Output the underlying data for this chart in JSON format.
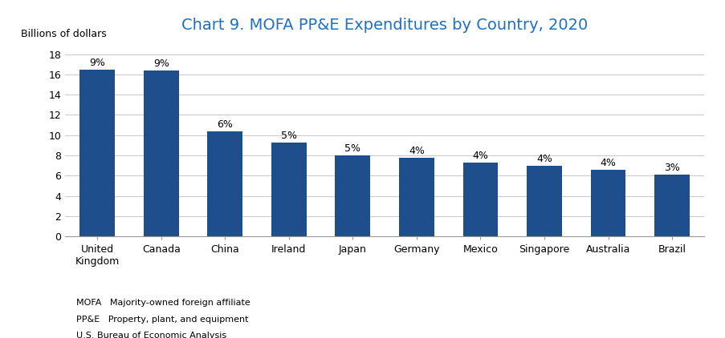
{
  "title": "Chart 9. MOFA PP&E Expenditures by Country, 2020",
  "ylabel": "Billions of dollars",
  "categories": [
    "United\nKingdom",
    "Canada",
    "China",
    "Ireland",
    "Japan",
    "Germany",
    "Mexico",
    "Singapore",
    "Australia",
    "Brazil"
  ],
  "values": [
    16.5,
    16.4,
    10.35,
    9.3,
    8.0,
    7.8,
    7.3,
    7.0,
    6.6,
    6.1
  ],
  "percentages": [
    "9%",
    "9%",
    "6%",
    "5%",
    "5%",
    "4%",
    "4%",
    "4%",
    "4%",
    "3%"
  ],
  "bar_color": "#1F4E8C",
  "title_color": "#1F70C1",
  "ylim": [
    0,
    18
  ],
  "yticks": [
    0,
    2,
    4,
    6,
    8,
    10,
    12,
    14,
    16,
    18
  ],
  "grid_color": "#C8C8C8",
  "background_color": "#FFFFFF",
  "footnote_lines": [
    "MOFA   Majority-owned foreign affiliate",
    "PP&E   Property, plant, and equipment",
    "U.S. Bureau of Economic Analysis"
  ],
  "title_fontsize": 14,
  "label_fontsize": 9,
  "tick_fontsize": 9,
  "footnote_fontsize": 8,
  "bar_width": 0.55
}
